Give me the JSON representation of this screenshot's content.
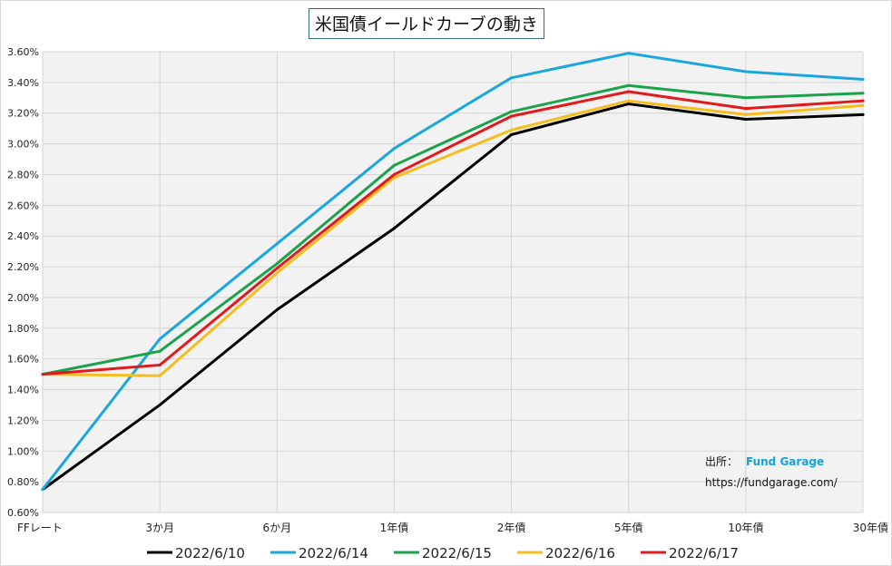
{
  "chart_data": {
    "type": "line",
    "title": "米国債イールドカーブの動き",
    "categories": [
      "FFレート",
      "3か月",
      "6か月",
      "1年債",
      "2年債",
      "5年債",
      "10年債",
      "30年債"
    ],
    "y_ticks": [
      "0.60%",
      "0.80%",
      "1.00%",
      "1.20%",
      "1.40%",
      "1.60%",
      "1.80%",
      "2.00%",
      "2.20%",
      "2.40%",
      "2.60%",
      "2.80%",
      "3.00%",
      "3.20%",
      "3.40%",
      "3.60%"
    ],
    "ylim": [
      0.6,
      3.6
    ],
    "grid": true,
    "legend_position": "bottom",
    "series": [
      {
        "name": "2022/6/10",
        "color": "#000000",
        "values": [
          0.75,
          1.3,
          1.92,
          2.45,
          3.06,
          3.26,
          3.16,
          3.19
        ]
      },
      {
        "name": "2022/6/14",
        "color": "#1aa7dd",
        "values": [
          0.75,
          1.73,
          2.35,
          2.97,
          3.43,
          3.59,
          3.47,
          3.42
        ]
      },
      {
        "name": "2022/6/15",
        "color": "#1aa34a",
        "values": [
          1.5,
          1.65,
          2.22,
          2.86,
          3.21,
          3.38,
          3.3,
          3.33
        ]
      },
      {
        "name": "2022/6/16",
        "color": "#f5be1e",
        "values": [
          1.5,
          1.49,
          2.16,
          2.78,
          3.09,
          3.28,
          3.19,
          3.25
        ]
      },
      {
        "name": "2022/6/17",
        "color": "#e31a1c",
        "values": [
          1.5,
          1.56,
          2.19,
          2.8,
          3.18,
          3.34,
          3.23,
          3.28
        ]
      }
    ],
    "annotation": {
      "label": "出所：",
      "brand": "Fund Garage",
      "url": "https://fundgarage.com/"
    }
  }
}
